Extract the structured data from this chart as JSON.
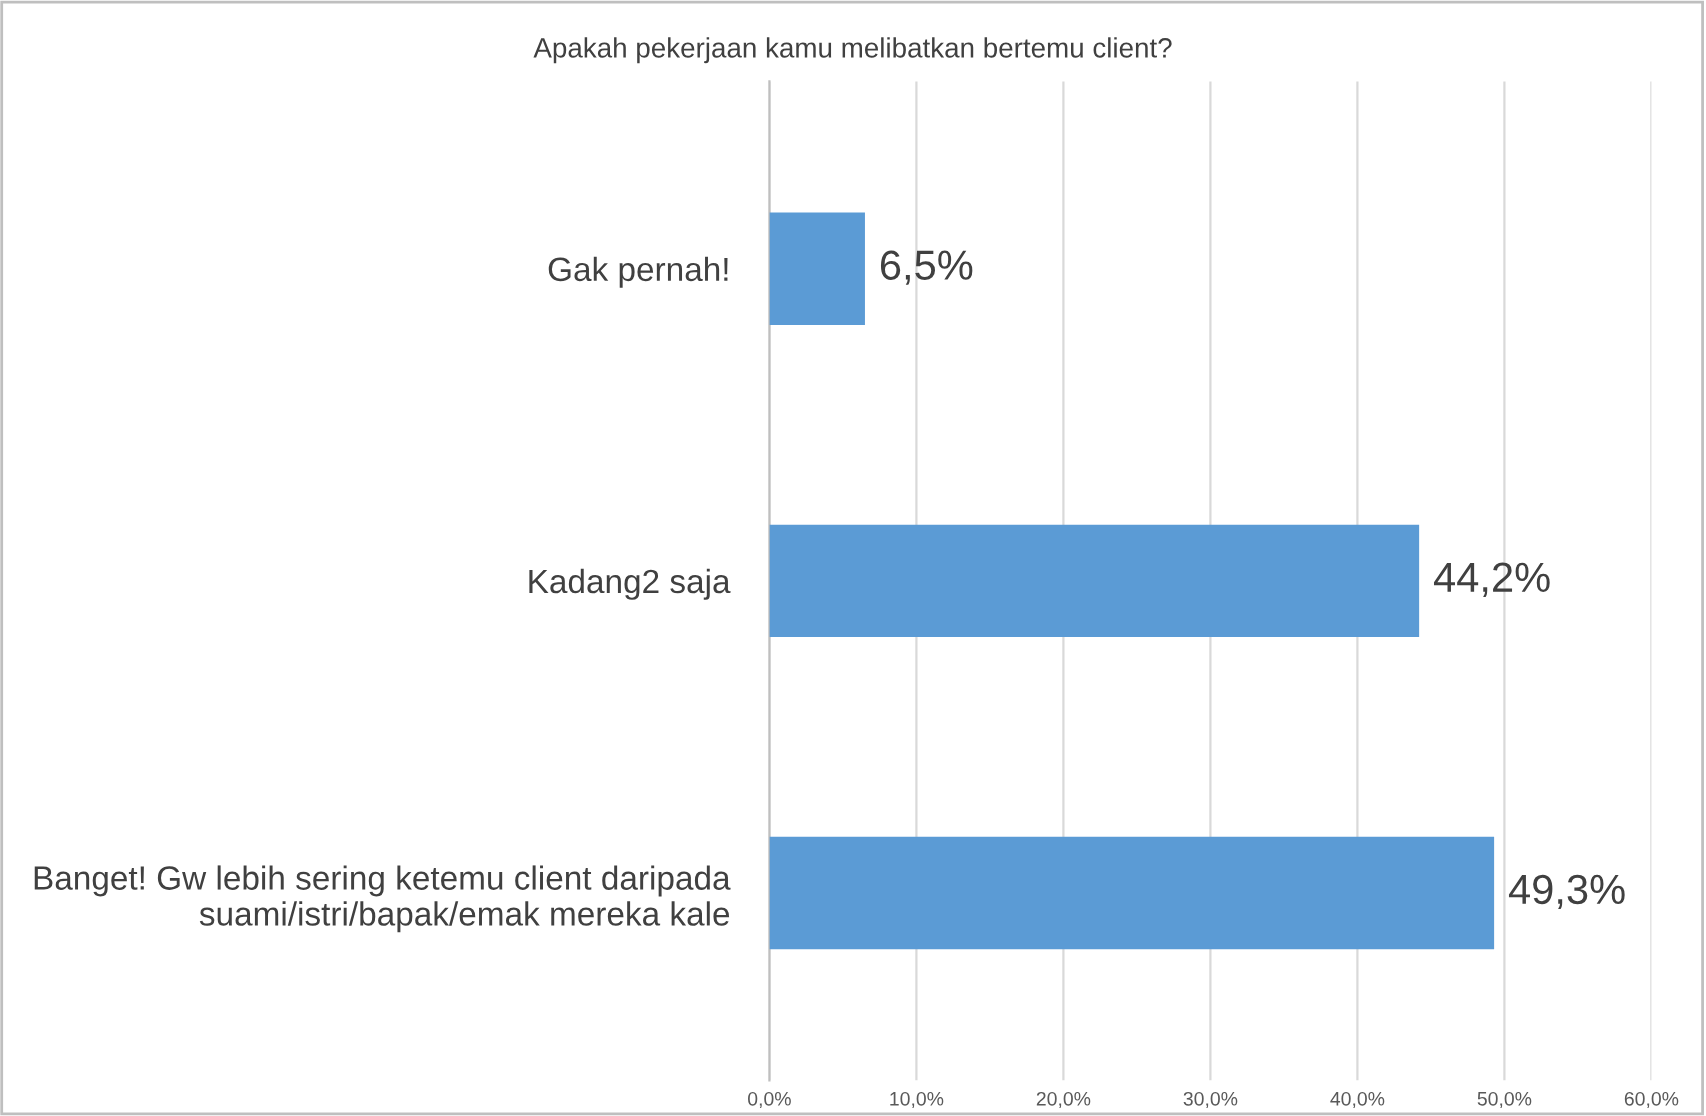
{
  "chart_data": {
    "type": "bar",
    "orientation": "horizontal",
    "title": "Apakah pekerjaan kamu melibatkan bertemu client?",
    "categories": [
      "Gak pernah!",
      "Kadang2 saja",
      "Banget! Gw lebih sering ketemu client daripada\nsuami/istri/bapak/emak mereka kale"
    ],
    "values": [
      6.5,
      44.2,
      49.3
    ],
    "color": "#5b9bd5",
    "value_labels": [
      "6,5%",
      "44,2%",
      "49,3%"
    ],
    "xlim": [
      0,
      60
    ],
    "xticks": [
      {
        "value": 0,
        "label": "0,0%"
      },
      {
        "value": 10,
        "label": "10,0%"
      },
      {
        "value": 20,
        "label": "20,0%"
      },
      {
        "value": 30,
        "label": "30,0%"
      },
      {
        "value": 40,
        "label": "40,0%"
      },
      {
        "value": 50,
        "label": "50,0%"
      },
      {
        "value": 60,
        "label": "60,0%"
      }
    ],
    "grid": "x"
  }
}
